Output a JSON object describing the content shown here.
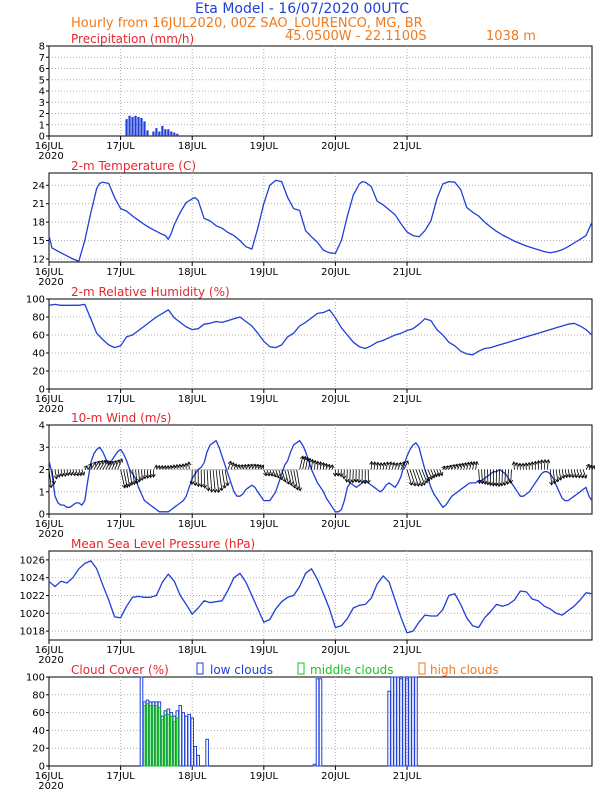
{
  "header": {
    "title": "Eta Model - 16/07/2020 00UTC",
    "subtitle": "Hourly from 16JUL2020, 00Z  SAO_LOURENCO, MG, BR",
    "coords": "45.0500W - 22.1100S",
    "elevation": "1038  m"
  },
  "colors": {
    "title": "#1f3fd8",
    "subtitle": "#f07a1e",
    "panel_title": "#e8262e",
    "series": "#1f3fd8",
    "cloud_low": "#1f3fd8",
    "cloud_mid": "#19c41c",
    "cloud_high": "#f07a1e",
    "grid": "#b0b0b0"
  },
  "chart_data": [
    {
      "type": "bar",
      "id": "precip",
      "title": "Precipitation (mm/h)",
      "ylim": [
        0,
        8
      ],
      "yticks": [
        0,
        1,
        2,
        3,
        4,
        5,
        6,
        7,
        8
      ],
      "x": [
        26,
        27,
        28,
        29,
        30,
        31,
        32,
        33,
        35,
        36,
        37,
        38,
        39,
        40,
        41,
        42,
        43
      ],
      "values": [
        1.5,
        1.8,
        1.7,
        1.8,
        1.7,
        1.6,
        1.3,
        0.5,
        0.4,
        0.7,
        0.4,
        0.9,
        0.6,
        0.6,
        0.4,
        0.3,
        0.2
      ]
    },
    {
      "type": "line",
      "id": "temp",
      "title": "2-m Temperature (C)",
      "ylim": [
        11.5,
        26
      ],
      "yticks": [
        12,
        15,
        18,
        21,
        24
      ],
      "x": [
        0,
        1,
        4,
        8,
        10,
        12,
        14,
        15,
        16,
        17,
        18,
        20,
        22,
        24,
        26,
        28,
        30,
        32,
        34,
        36,
        38,
        39,
        40,
        41,
        42,
        44,
        46,
        48,
        49,
        50,
        52,
        54,
        56,
        58,
        60,
        62,
        63,
        64,
        65,
        66,
        67,
        68,
        70,
        72,
        74,
        76,
        78,
        80,
        82,
        84,
        86,
        88,
        90,
        92,
        94,
        96,
        98,
        100,
        102,
        104,
        105,
        106,
        108,
        110,
        112,
        114,
        116,
        118,
        120,
        122,
        124,
        126,
        128,
        130,
        132,
        134,
        136,
        138,
        140,
        142,
        144,
        146,
        148,
        150,
        152,
        154,
        156,
        158,
        160,
        162,
        164,
        166,
        168,
        170,
        172,
        174,
        176,
        178,
        180,
        182
      ],
      "values": [
        15.8,
        13.8,
        13.0,
        12.0,
        11.6,
        15.0,
        19.5,
        21.5,
        23.5,
        24.3,
        24.5,
        24.3,
        22.0,
        20.2,
        19.8,
        19.0,
        18.3,
        17.6,
        17.0,
        16.5,
        16.0,
        15.8,
        15.2,
        16.2,
        17.6,
        19.6,
        21.2,
        21.8,
        22.0,
        21.5,
        18.6,
        18.2,
        17.4,
        17.0,
        16.3,
        15.8,
        15.4,
        15.0,
        14.5,
        14.0,
        13.8,
        13.6,
        17.0,
        21.0,
        24.0,
        24.8,
        24.6,
        22.0,
        20.2,
        19.9,
        16.6,
        15.6,
        14.7,
        13.4,
        13.0,
        12.9,
        15.0,
        19.0,
        22.4,
        24.2,
        24.6,
        24.5,
        23.8,
        21.4,
        20.8,
        20.0,
        19.2,
        17.7,
        16.4,
        15.8,
        15.6,
        16.6,
        18.2,
        21.8,
        24.2,
        24.6,
        24.5,
        23.3,
        20.4,
        19.6,
        19.0,
        18.0,
        17.2,
        16.5,
        15.9,
        15.4,
        14.9,
        14.5,
        14.1,
        13.8,
        13.5,
        13.2,
        13.0,
        13.2,
        13.5,
        14.0,
        14.6,
        15.2,
        15.8,
        18.0
      ]
    },
    {
      "type": "line",
      "id": "rh",
      "title": "2-m Relative Humidity (%)",
      "ylim": [
        0,
        100
      ],
      "yticks": [
        0,
        20,
        40,
        60,
        80,
        100
      ],
      "x": [
        0,
        2,
        4,
        6,
        8,
        10,
        12,
        14,
        16,
        18,
        20,
        22,
        24,
        26,
        28,
        30,
        32,
        34,
        36,
        38,
        40,
        42,
        44,
        46,
        48,
        50,
        52,
        54,
        56,
        58,
        60,
        62,
        64,
        66,
        68,
        70,
        72,
        74,
        76,
        78,
        80,
        82,
        84,
        86,
        88,
        90,
        92,
        94,
        96,
        98,
        100,
        102,
        104,
        106,
        108,
        110,
        112,
        114,
        116,
        118,
        120,
        122,
        124,
        126,
        128,
        130,
        132,
        134,
        136,
        138,
        140,
        142,
        144,
        146,
        148,
        150,
        152,
        154,
        156,
        158,
        160,
        162,
        164,
        166,
        168,
        170,
        172,
        174,
        176,
        178,
        180,
        182
      ],
      "values": [
        93,
        94,
        93,
        93,
        93,
        93,
        94,
        78,
        62,
        55,
        49,
        46,
        48,
        58,
        60,
        65,
        70,
        75,
        80,
        84,
        88,
        79,
        74,
        69,
        66,
        67,
        72,
        73,
        75,
        74,
        76,
        78,
        80,
        75,
        70,
        62,
        53,
        47,
        46,
        49,
        58,
        62,
        70,
        74,
        79,
        84,
        85,
        88,
        79,
        68,
        60,
        52,
        47,
        45,
        48,
        52,
        54,
        57,
        60,
        62,
        65,
        67,
        72,
        78,
        76,
        66,
        60,
        52,
        48,
        42,
        39,
        38,
        42,
        45,
        46,
        48,
        50,
        52,
        54,
        56,
        58,
        60,
        62,
        64,
        66,
        68,
        70,
        72,
        73,
        70,
        66,
        60
      ]
    },
    {
      "type": "line",
      "id": "wind",
      "title": "10-m Wind (m/s)",
      "ylim": [
        0,
        4
      ],
      "yticks": [
        0,
        1,
        2,
        3,
        4
      ],
      "x": [
        0,
        1,
        2,
        3,
        4,
        5,
        6,
        7,
        8,
        9,
        10,
        11,
        12,
        13,
        14,
        15,
        16,
        17,
        18,
        19,
        20,
        21,
        22,
        23,
        24,
        25,
        26,
        27,
        28,
        29,
        30,
        31,
        32,
        33,
        34,
        35,
        36,
        37,
        38,
        39,
        40,
        41,
        42,
        43,
        44,
        45,
        46,
        47,
        48,
        49,
        50,
        51,
        52,
        53,
        54,
        55,
        56,
        57,
        58,
        59,
        60,
        61,
        62,
        63,
        64,
        65,
        66,
        67,
        68,
        69,
        70,
        71,
        72,
        73,
        74,
        75,
        76,
        77,
        78,
        79,
        80,
        81,
        82,
        83,
        84,
        85,
        86,
        87,
        88,
        89,
        90,
        91,
        92,
        93,
        94,
        95,
        96,
        97,
        98,
        99,
        100,
        101,
        102,
        103,
        104,
        105,
        106,
        107,
        108,
        109,
        110,
        111,
        112,
        113,
        114,
        115,
        116,
        117,
        118,
        119,
        120,
        121,
        122,
        123,
        124,
        125,
        126,
        127,
        128,
        129,
        130,
        131,
        132,
        133,
        134,
        135,
        136,
        137,
        138,
        139,
        140,
        141,
        142,
        143,
        144,
        145,
        146,
        147,
        148,
        149,
        150,
        151,
        152,
        153,
        154,
        155,
        156,
        157,
        158,
        159,
        160,
        161,
        162,
        163,
        164,
        165,
        166,
        167,
        168,
        169,
        170,
        171,
        172,
        173,
        174,
        175,
        176,
        177,
        178,
        179,
        180,
        181,
        182
      ],
      "values": [
        2.4,
        1.8,
        0.8,
        0.5,
        0.4,
        0.4,
        0.3,
        0.3,
        0.4,
        0.5,
        0.5,
        0.4,
        0.6,
        1.5,
        2.3,
        2.7,
        2.9,
        3.0,
        2.8,
        2.5,
        2.2,
        2.4,
        2.6,
        2.8,
        2.9,
        2.7,
        2.4,
        2.0,
        1.8,
        1.6,
        1.2,
        0.9,
        0.6,
        0.5,
        0.4,
        0.3,
        0.2,
        0.1,
        0.1,
        0.1,
        0.1,
        0.2,
        0.3,
        0.4,
        0.5,
        0.6,
        0.8,
        1.2,
        1.6,
        1.8,
        2.0,
        2.1,
        2.3,
        2.8,
        3.1,
        3.2,
        3.3,
        3.0,
        2.6,
        2.2,
        1.8,
        1.4,
        1.0,
        0.8,
        0.8,
        0.9,
        1.1,
        1.2,
        1.3,
        1.2,
        1.0,
        0.8,
        0.6,
        0.6,
        0.6,
        0.8,
        1.0,
        1.4,
        1.8,
        2.2,
        2.4,
        2.8,
        3.1,
        3.2,
        3.3,
        3.1,
        2.8,
        2.4,
        2.0,
        1.7,
        1.4,
        1.2,
        1.0,
        0.7,
        0.5,
        0.3,
        0.1,
        0.1,
        0.2,
        0.6,
        1.2,
        1.4,
        1.3,
        1.2,
        1.3,
        1.4,
        1.5,
        1.4,
        1.3,
        1.2,
        1.1,
        1.0,
        1.1,
        1.3,
        1.4,
        1.3,
        1.2,
        1.4,
        1.7,
        2.2,
        2.6,
        2.9,
        3.1,
        3.2,
        3.0,
        2.5,
        2.0,
        1.6,
        1.2,
        0.9,
        0.7,
        0.5,
        0.3,
        0.4,
        0.6,
        0.8,
        0.9,
        1.0,
        1.1,
        1.2,
        1.3,
        1.4,
        1.4,
        1.4,
        1.5,
        1.5,
        1.6,
        1.7,
        1.8,
        1.9,
        1.9,
        2.0,
        1.9,
        1.8,
        1.6,
        1.4,
        1.2,
        1.0,
        0.8,
        0.8,
        0.9,
        1.0,
        1.2,
        1.4,
        1.6,
        1.8,
        1.9,
        1.9,
        1.8,
        1.6,
        1.3,
        1.0,
        0.7,
        0.6,
        0.6,
        0.7,
        0.8,
        0.9,
        1.0,
        1.1,
        1.2,
        0.8,
        0.6
      ]
    },
    {
      "type": "line",
      "id": "mslp",
      "title": "Mean Sea Level Pressure (hPa)",
      "ylim": [
        1017,
        1027
      ],
      "yticks": [
        1018,
        1020,
        1022,
        1024,
        1026
      ],
      "x": [
        0,
        2,
        4,
        6,
        8,
        10,
        12,
        14,
        16,
        18,
        20,
        22,
        24,
        26,
        28,
        30,
        32,
        34,
        36,
        38,
        40,
        42,
        44,
        46,
        48,
        50,
        52,
        54,
        56,
        58,
        60,
        62,
        64,
        66,
        68,
        70,
        72,
        74,
        76,
        78,
        80,
        82,
        84,
        86,
        88,
        90,
        92,
        94,
        96,
        98,
        100,
        102,
        104,
        106,
        108,
        110,
        112,
        114,
        116,
        118,
        120,
        122,
        124,
        126,
        128,
        130,
        132,
        134,
        136,
        138,
        140,
        142,
        144,
        146,
        148,
        150,
        152,
        154,
        156,
        158,
        160,
        162,
        164,
        166,
        168,
        170,
        172,
        174,
        176,
        178,
        180,
        182
      ],
      "values": [
        1023.6,
        1023.0,
        1023.6,
        1023.4,
        1024.0,
        1025.0,
        1025.6,
        1025.9,
        1025.0,
        1023.2,
        1021.5,
        1019.6,
        1019.5,
        1020.8,
        1021.8,
        1021.9,
        1021.8,
        1021.8,
        1022.0,
        1023.5,
        1024.4,
        1023.6,
        1022.0,
        1021.0,
        1019.9,
        1020.6,
        1021.4,
        1021.2,
        1021.3,
        1021.4,
        1022.6,
        1024.0,
        1024.5,
        1023.5,
        1022.0,
        1020.5,
        1019.0,
        1019.3,
        1020.5,
        1021.3,
        1021.8,
        1022.0,
        1023.0,
        1024.5,
        1025.0,
        1023.8,
        1022.2,
        1020.5,
        1018.4,
        1018.6,
        1019.4,
        1020.6,
        1020.9,
        1021.0,
        1021.7,
        1023.3,
        1024.2,
        1023.5,
        1021.5,
        1019.5,
        1017.8,
        1018.0,
        1019.0,
        1019.8,
        1019.7,
        1019.7,
        1020.4,
        1022.0,
        1022.2,
        1021.0,
        1019.5,
        1018.6,
        1018.4,
        1019.5,
        1020.2,
        1021.0,
        1020.8,
        1021.0,
        1021.5,
        1022.5,
        1022.4,
        1021.6,
        1021.4,
        1020.8,
        1020.5,
        1020.0,
        1019.8,
        1020.3,
        1020.8,
        1021.5,
        1022.3,
        1022.2
      ]
    },
    {
      "type": "bar",
      "id": "cloud",
      "title": "Cloud Cover (%)",
      "ylim": [
        0,
        100
      ],
      "yticks": [
        0,
        20,
        40,
        60,
        80,
        100
      ],
      "legend": {
        "low": "low clouds",
        "mid": "middle clouds",
        "high": "high clouds"
      },
      "series": [
        {
          "name": "low clouds",
          "x": [
            31,
            32,
            33,
            34,
            35,
            36,
            37,
            38,
            39,
            40,
            41,
            42,
            43,
            44,
            45,
            46,
            47,
            48,
            49,
            50,
            53,
            89,
            90,
            91,
            114,
            115,
            116,
            117,
            118,
            119,
            120,
            121,
            122,
            123
          ],
          "values": [
            100,
            72,
            74,
            72,
            72,
            72,
            72,
            56,
            62,
            64,
            60,
            56,
            62,
            68,
            60,
            56,
            58,
            54,
            22,
            12,
            30,
            2,
            98,
            98,
            84,
            100,
            100,
            100,
            98,
            100,
            98,
            100,
            100,
            100
          ]
        },
        {
          "name": "middle clouds",
          "x": [
            32,
            33,
            34,
            35,
            36,
            37,
            38,
            39,
            40,
            41,
            42,
            43
          ],
          "values": [
            68,
            70,
            68,
            68,
            68,
            66,
            52,
            58,
            58,
            56,
            50,
            54
          ]
        }
      ]
    }
  ],
  "axis": {
    "tick_labels": [
      "16JUL",
      "17JUL",
      "18JUL",
      "19JUL",
      "20JUL",
      "21JUL"
    ],
    "year_label": "2020",
    "hours_span": 182
  }
}
